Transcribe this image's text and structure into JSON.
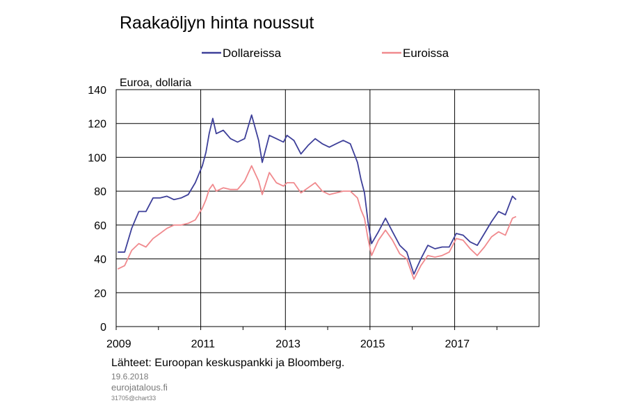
{
  "chart_data": {
    "type": "line",
    "title": "Raakaöljyn hinta noussut",
    "ylabel": "Euroa, dollaria",
    "xlabel": "",
    "ylim": [
      0,
      140
    ],
    "xlim": [
      "2009-01-01",
      "2018-12-31"
    ],
    "yticks": [
      0,
      20,
      40,
      60,
      80,
      100,
      120,
      140
    ],
    "xtick_labels": [
      "2009",
      "2011",
      "2013",
      "2015",
      "2017"
    ],
    "grid": true,
    "legend_position": "top",
    "series": [
      {
        "name": "Dollareissa",
        "color": "#3d3f99",
        "x": [
          "2009-01",
          "2009-03",
          "2009-05",
          "2009-07",
          "2009-09",
          "2009-11",
          "2010-01",
          "2010-03",
          "2010-05",
          "2010-07",
          "2010-09",
          "2010-11",
          "2011-01",
          "2011-02",
          "2011-03",
          "2011-04",
          "2011-05",
          "2011-07",
          "2011-09",
          "2011-11",
          "2012-01",
          "2012-03",
          "2012-05",
          "2012-06",
          "2012-08",
          "2012-10",
          "2012-12",
          "2013-01",
          "2013-03",
          "2013-05",
          "2013-07",
          "2013-09",
          "2013-11",
          "2014-01",
          "2014-03",
          "2014-05",
          "2014-07",
          "2014-09",
          "2014-10",
          "2014-11",
          "2014-12",
          "2015-01",
          "2015-03",
          "2015-05",
          "2015-07",
          "2015-09",
          "2015-11",
          "2016-01",
          "2016-03",
          "2016-05",
          "2016-07",
          "2016-09",
          "2016-11",
          "2017-01",
          "2017-03",
          "2017-05",
          "2017-07",
          "2017-09",
          "2017-11",
          "2018-01",
          "2018-03",
          "2018-05",
          "2018-06"
        ],
        "values": [
          44,
          44,
          58,
          68,
          68,
          76,
          76,
          77,
          75,
          76,
          78,
          85,
          95,
          103,
          114,
          123,
          114,
          116,
          111,
          109,
          111,
          125,
          110,
          97,
          113,
          111,
          109,
          113,
          110,
          102,
          107,
          111,
          108,
          106,
          108,
          110,
          108,
          97,
          87,
          79,
          62,
          49,
          56,
          64,
          56,
          48,
          44,
          31,
          40,
          48,
          46,
          47,
          47,
          55,
          54,
          50,
          48,
          55,
          62,
          68,
          66,
          77,
          75
        ]
      },
      {
        "name": "Euroissa",
        "color": "#f0898d",
        "x": [
          "2009-01",
          "2009-03",
          "2009-05",
          "2009-07",
          "2009-09",
          "2009-11",
          "2010-01",
          "2010-03",
          "2010-05",
          "2010-07",
          "2010-09",
          "2010-11",
          "2011-01",
          "2011-02",
          "2011-03",
          "2011-04",
          "2011-05",
          "2011-07",
          "2011-09",
          "2011-11",
          "2012-01",
          "2012-03",
          "2012-05",
          "2012-06",
          "2012-08",
          "2012-10",
          "2012-12",
          "2013-01",
          "2013-03",
          "2013-05",
          "2013-07",
          "2013-09",
          "2013-11",
          "2014-01",
          "2014-03",
          "2014-05",
          "2014-07",
          "2014-09",
          "2014-10",
          "2014-11",
          "2014-12",
          "2015-01",
          "2015-03",
          "2015-05",
          "2015-07",
          "2015-09",
          "2015-11",
          "2016-01",
          "2016-03",
          "2016-05",
          "2016-07",
          "2016-09",
          "2016-11",
          "2017-01",
          "2017-03",
          "2017-05",
          "2017-07",
          "2017-09",
          "2017-11",
          "2018-01",
          "2018-03",
          "2018-05",
          "2018-06"
        ],
        "values": [
          34,
          36,
          45,
          49,
          47,
          52,
          55,
          58,
          60,
          60,
          61,
          63,
          70,
          75,
          81,
          84,
          80,
          82,
          81,
          81,
          86,
          95,
          86,
          78,
          91,
          85,
          83,
          85,
          85,
          79,
          82,
          85,
          80,
          78,
          79,
          80,
          80,
          76,
          69,
          64,
          52,
          42,
          51,
          57,
          51,
          43,
          40,
          28,
          36,
          42,
          41,
          42,
          44,
          52,
          51,
          46,
          42,
          47,
          53,
          56,
          54,
          64,
          65
        ]
      }
    ]
  },
  "footer": {
    "source": "Lähteet: Euroopan keskuspankki ja Bloomberg.",
    "date": "19.6.2018",
    "site": "eurojatalous.fi",
    "code": "31705@chart33"
  }
}
